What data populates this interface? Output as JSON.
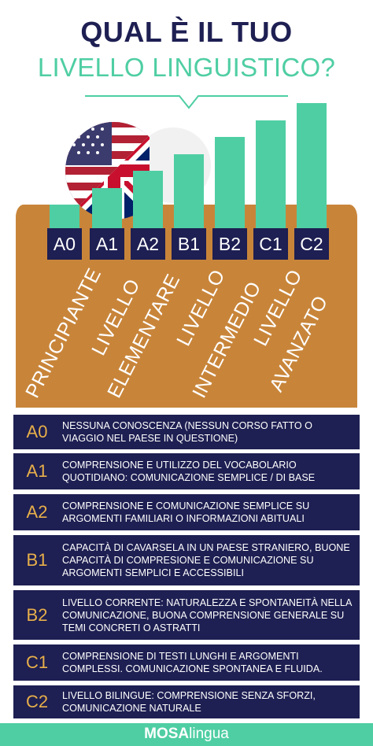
{
  "header": {
    "title_line1": "QUAL È IL TUO",
    "title_line2": "LIVELLO LINGUISTICO?"
  },
  "levels": [
    {
      "code": "A0",
      "bar_rank": 1
    },
    {
      "code": "A1",
      "bar_rank": 2
    },
    {
      "code": "A2",
      "bar_rank": 3
    },
    {
      "code": "B1",
      "bar_rank": 4
    },
    {
      "code": "B2",
      "bar_rank": 5
    },
    {
      "code": "C1",
      "bar_rank": 6
    },
    {
      "code": "C2",
      "bar_rank": 7
    }
  ],
  "categories": {
    "principiante": "PRINCIPIANTE",
    "elementare_1": "LIVELLO",
    "elementare_2": "ELEMENTARE",
    "intermedio_1": "LIVELLO",
    "intermedio_2": "INTERMEDIO",
    "avanzato_1": "LIVELLO",
    "avanzato_2": "AVANZATO"
  },
  "descriptions": [
    {
      "code": "A0",
      "text": "NESSUNA CONOSCENZA (NESSUN CORSO FATTO O VIAGGIO NEL PAESE IN QUESTIONE)"
    },
    {
      "code": "A1",
      "text": "COMPRENSIONE E UTILIZZO DEL VOCABOLARIO QUOTIDIANO: COMUNICAZIONE SEMPLICE / DI BASE"
    },
    {
      "code": "A2",
      "text": "COMPRENSIONE E COMUNICAZIONE SEMPLICE SU ARGOMENTI FAMILIARI O INFORMAZIONI ABITUALI"
    },
    {
      "code": "B1",
      "text": "CAPACITÀ DI CAVARSELA IN UN PAESE STRANIERO, BUONE CAPACITÀ DI COMPRESIONE E COMUNICAZIONE SU ARGOMENTI SEMPLICI E ACCESSIBILI"
    },
    {
      "code": "B2",
      "text": "LIVELLO CORRENTE: NATURALEZZA E SPONTANEITÀ NELLA COMUNICAZIONE, BUONA COMPRENSIONE GENERALE SU TEMI CONCRETI O ASTRATTI"
    },
    {
      "code": "C1",
      "text": "COMPRENSIONE DI TESTI LUNGHI E ARGOMENTI COMPLESSI. COMUNICAZIONE SPONTANEA E FLUIDA."
    },
    {
      "code": "C2",
      "text": "LIVELLO BILINGUE: COMPRENSIONE SENZA SFORZI, COMUNICAZIONE NATURALE"
    }
  ],
  "footer": {
    "brand_bold": "MOSA",
    "brand_thin": "lingua"
  },
  "colors": {
    "navy": "#1e1f52",
    "mint": "#4fcea3",
    "brown": "#c8853a",
    "gold": "#e8b04a"
  },
  "icons": {
    "flag": "us-uk-flag-icon",
    "speech": "speech-bubble-icon"
  }
}
